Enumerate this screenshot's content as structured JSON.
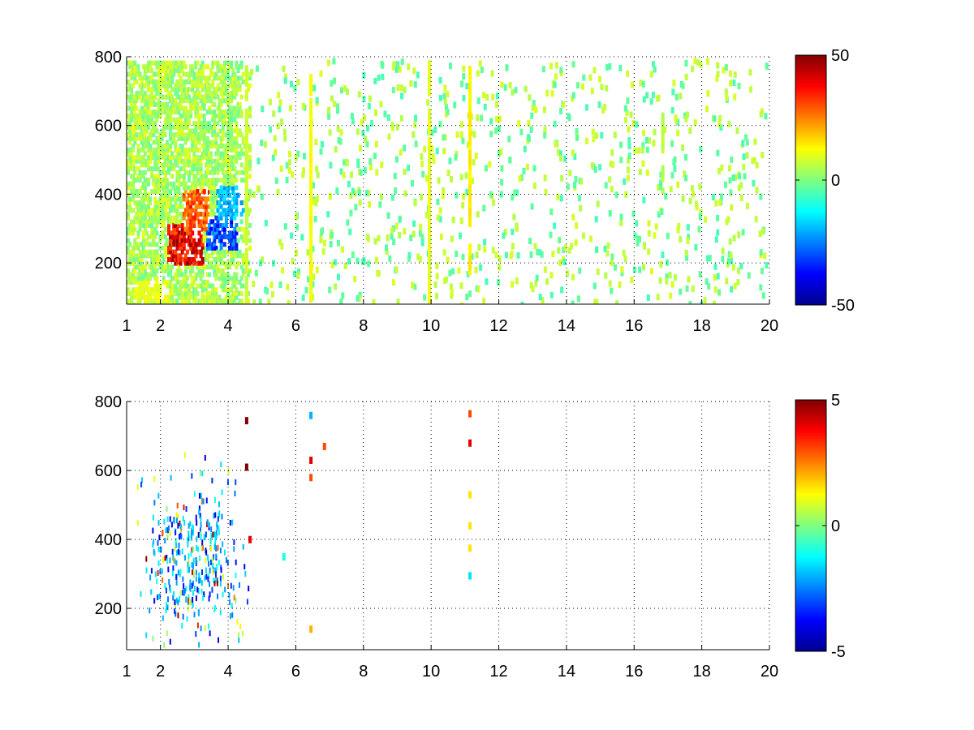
{
  "chart_data": [
    {
      "type": "heatmap",
      "title": "",
      "xlabel": "",
      "ylabel": "",
      "xlim": [
        1,
        20
      ],
      "ylim": [
        80,
        800
      ],
      "x_ticks": [
        1,
        2,
        4,
        6,
        8,
        10,
        12,
        14,
        16,
        18,
        20
      ],
      "y_ticks": [
        200,
        400,
        600,
        800
      ],
      "grid": true,
      "colormap": "jet",
      "colorbar": {
        "min": -50,
        "max": 50,
        "ticks": [
          -50,
          0,
          50
        ]
      },
      "description": "Dense noisy field; strong positive band (~20 to 50) around x 2-3, y 150-400; negative region (~-20 to -40) around x 3-4, y 250-400; scattered small values (~0 to 10) across x 4-20 with vertical streaks near x 6.4, 9.9, 11.1, 16.8",
      "hotspots": [
        {
          "x": [
            2.2,
            3.2
          ],
          "y": [
            200,
            320
          ],
          "value": 45
        },
        {
          "x": [
            2.6,
            3.4
          ],
          "y": [
            300,
            420
          ],
          "value": 35
        },
        {
          "x": [
            3.3,
            4.2
          ],
          "y": [
            250,
            340
          ],
          "value": -35
        },
        {
          "x": [
            3.6,
            4.4
          ],
          "y": [
            330,
            430
          ],
          "value": -22
        },
        {
          "x": [
            1.2,
            2.2
          ],
          "y": [
            90,
            160
          ],
          "value": 12
        }
      ],
      "streaks": [
        {
          "x": 6.4,
          "y": [
            120,
            760
          ],
          "value": 12
        },
        {
          "x": 9.9,
          "y": [
            90,
            800
          ],
          "value": 10
        },
        {
          "x": 11.1,
          "y": [
            200,
            800
          ],
          "value": 14
        },
        {
          "x": 16.8,
          "y": [
            470,
            650
          ],
          "value": 6
        },
        {
          "x": 4.5,
          "y": [
            90,
            800
          ],
          "value": 8
        }
      ]
    },
    {
      "type": "heatmap",
      "title": "",
      "xlabel": "",
      "ylabel": "",
      "xlim": [
        1,
        20
      ],
      "ylim": [
        80,
        800
      ],
      "x_ticks": [
        1,
        2,
        4,
        6,
        8,
        10,
        12,
        14,
        16,
        18,
        20
      ],
      "y_ticks": [
        200,
        400,
        600,
        800
      ],
      "grid": true,
      "colormap": "jet",
      "colorbar": {
        "min": -5,
        "max": 5,
        "ticks": [
          -5,
          0,
          5
        ]
      },
      "description": "Sparse field concentrated at x 1.3-5 and y 100-500 with mostly slightly negative values (~-1 to -4); isolated points at x 4.5, 6.4 and 11.1",
      "points": [
        {
          "x": 4.5,
          "y": 755,
          "value": 5
        },
        {
          "x": 4.5,
          "y": 620,
          "value": 5
        },
        {
          "x": 6.4,
          "y": 770,
          "value": -2
        },
        {
          "x": 6.4,
          "y": 640,
          "value": 4
        },
        {
          "x": 6.4,
          "y": 590,
          "value": 3
        },
        {
          "x": 6.8,
          "y": 680,
          "value": 3
        },
        {
          "x": 11.1,
          "y": 775,
          "value": 3
        },
        {
          "x": 11.1,
          "y": 690,
          "value": 4
        },
        {
          "x": 11.1,
          "y": 540,
          "value": 1.5
        },
        {
          "x": 11.1,
          "y": 450,
          "value": 1.5
        },
        {
          "x": 11.1,
          "y": 385,
          "value": 1.5
        },
        {
          "x": 11.1,
          "y": 305,
          "value": -1.5
        },
        {
          "x": 5.6,
          "y": 360,
          "value": -1
        },
        {
          "x": 4.6,
          "y": 410,
          "value": 4
        },
        {
          "x": 6.4,
          "y": 150,
          "value": 2
        }
      ]
    }
  ]
}
